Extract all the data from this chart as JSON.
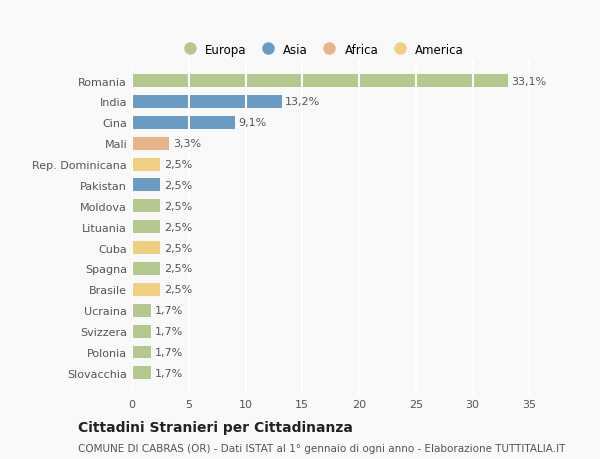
{
  "categories": [
    "Romania",
    "India",
    "Cina",
    "Mali",
    "Rep. Dominicana",
    "Pakistan",
    "Moldova",
    "Lituania",
    "Cuba",
    "Spagna",
    "Brasile",
    "Ucraina",
    "Svizzera",
    "Polonia",
    "Slovacchia"
  ],
  "values": [
    33.1,
    13.2,
    9.1,
    3.3,
    2.5,
    2.5,
    2.5,
    2.5,
    2.5,
    2.5,
    2.5,
    1.7,
    1.7,
    1.7,
    1.7
  ],
  "labels": [
    "33,1%",
    "13,2%",
    "9,1%",
    "3,3%",
    "2,5%",
    "2,5%",
    "2,5%",
    "2,5%",
    "2,5%",
    "2,5%",
    "2,5%",
    "1,7%",
    "1,7%",
    "1,7%",
    "1,7%"
  ],
  "colors": [
    "#b5c98e",
    "#6a9bc3",
    "#6a9bc3",
    "#e8b48a",
    "#f0d080",
    "#6a9bc3",
    "#b5c98e",
    "#b5c98e",
    "#f0d080",
    "#b5c98e",
    "#f0d080",
    "#b5c98e",
    "#b5c98e",
    "#b5c98e",
    "#b5c98e"
  ],
  "legend_labels": [
    "Europa",
    "Asia",
    "Africa",
    "America"
  ],
  "legend_colors": [
    "#b5c98e",
    "#6a9bc3",
    "#e8b48a",
    "#f0d080"
  ],
  "title": "Cittadini Stranieri per Cittadinanza",
  "subtitle": "COMUNE DI CABRAS (OR) - Dati ISTAT al 1° gennaio di ogni anno - Elaborazione TUTTITALIA.IT",
  "xlim": [
    0,
    37
  ],
  "xticks": [
    0,
    5,
    10,
    15,
    20,
    25,
    30,
    35
  ],
  "bg_color": "#f9f9f9",
  "grid_color": "#ffffff",
  "title_fontsize": 10,
  "subtitle_fontsize": 7.5,
  "label_fontsize": 8,
  "tick_fontsize": 8,
  "legend_fontsize": 8.5
}
